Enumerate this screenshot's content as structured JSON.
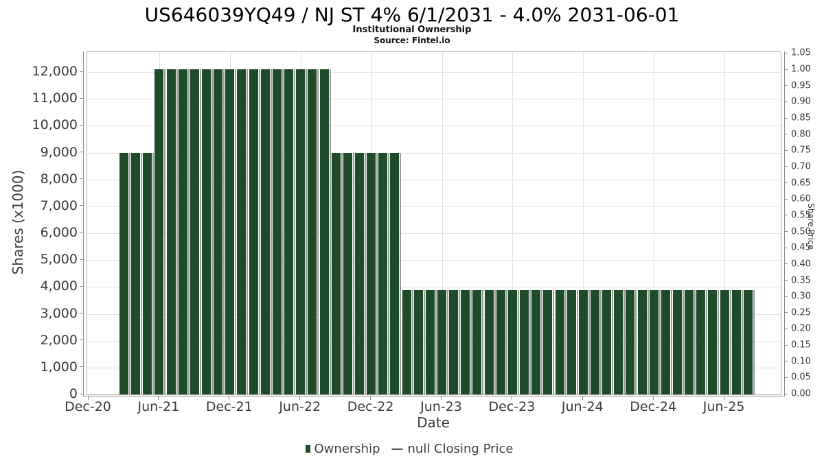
{
  "header": {
    "title": "US646039YQ49 / NJ ST 4% 6/1/2031 - 4.0% 2031-06-01",
    "subtitle": "Institutional Ownership",
    "source": "Source: Fintel.io"
  },
  "axes": {
    "left": {
      "title": "Shares (x1000)"
    },
    "right": {
      "title": "Share Price"
    },
    "x": {
      "title": "Date"
    }
  },
  "legend": {
    "dash_glyph": "—",
    "items": [
      {
        "marker": "square",
        "color": "#1e4b28",
        "label": "Ownership"
      },
      {
        "marker": "dash",
        "color": "#555555",
        "label": "null Closing Price"
      }
    ]
  },
  "chart_data": {
    "type": "bar",
    "title": "US646039YQ49 / NJ ST 4% 6/1/2031 - 4.0% 2031-06-01",
    "subtitle": "Institutional Ownership",
    "source": "Source: Fintel.io",
    "xlabel": "Date",
    "ylabel_left": "Shares (x1000)",
    "ylabel_right": "Share Price",
    "grid": true,
    "legend_position": "bottom",
    "bar_color": "#1e4b28",
    "bar_shadow_color": "#9c9c9c",
    "ylim_left": [
      0,
      12740
    ],
    "ylim_right": [
      0,
      1.055
    ],
    "left_ticks": [
      {
        "value": 0,
        "label": "0"
      },
      {
        "value": 1000,
        "label": "1,000"
      },
      {
        "value": 2000,
        "label": "2,000"
      },
      {
        "value": 3000,
        "label": "3,000"
      },
      {
        "value": 4000,
        "label": "4,000"
      },
      {
        "value": 5000,
        "label": "5,000"
      },
      {
        "value": 6000,
        "label": "6,000"
      },
      {
        "value": 7000,
        "label": "7,000"
      },
      {
        "value": 8000,
        "label": "8,000"
      },
      {
        "value": 9000,
        "label": "9,000"
      },
      {
        "value": 10000,
        "label": "10,000"
      },
      {
        "value": 11000,
        "label": "11,000"
      },
      {
        "value": 12000,
        "label": "12,000"
      }
    ],
    "right_ticks": [
      "0.00",
      "0.05",
      "0.10",
      "0.15",
      "0.20",
      "0.25",
      "0.30",
      "0.35",
      "0.40",
      "0.45",
      "0.50",
      "0.55",
      "0.60",
      "0.65",
      "0.70",
      "0.75",
      "0.80",
      "0.85",
      "0.90",
      "0.95",
      "1.00",
      "1.05"
    ],
    "x_ticks": [
      {
        "label": "Dec-20",
        "month_index": 0
      },
      {
        "label": "Jun-21",
        "month_index": 6
      },
      {
        "label": "Dec-21",
        "month_index": 12
      },
      {
        "label": "Jun-22",
        "month_index": 18
      },
      {
        "label": "Dec-22",
        "month_index": 24
      },
      {
        "label": "Jun-23",
        "month_index": 30
      },
      {
        "label": "Dec-23",
        "month_index": 36
      },
      {
        "label": "Jun-24",
        "month_index": 42
      },
      {
        "label": "Dec-24",
        "month_index": 48
      },
      {
        "label": "Jun-25",
        "month_index": 54
      }
    ],
    "series": [
      {
        "name": "Ownership",
        "unit": "shares x1000",
        "points": [
          [
            "Mar-21",
            9000
          ],
          [
            "Apr-21",
            9000
          ],
          [
            "May-21",
            9000
          ],
          [
            "Jun-21",
            12100
          ],
          [
            "Jul-21",
            12100
          ],
          [
            "Aug-21",
            12100
          ],
          [
            "Sep-21",
            12100
          ],
          [
            "Oct-21",
            12100
          ],
          [
            "Nov-21",
            12100
          ],
          [
            "Dec-21",
            12100
          ],
          [
            "Jan-22",
            12100
          ],
          [
            "Feb-22",
            12100
          ],
          [
            "Mar-22",
            12100
          ],
          [
            "Apr-22",
            12100
          ],
          [
            "May-22",
            12100
          ],
          [
            "Jun-22",
            12100
          ],
          [
            "Jul-22",
            12100
          ],
          [
            "Aug-22",
            12100
          ],
          [
            "Sep-22",
            9000
          ],
          [
            "Oct-22",
            9000
          ],
          [
            "Nov-22",
            9000
          ],
          [
            "Dec-22",
            9000
          ],
          [
            "Jan-23",
            9000
          ],
          [
            "Feb-23",
            9000
          ],
          [
            "Mar-23",
            3880
          ],
          [
            "Apr-23",
            3880
          ],
          [
            "May-23",
            3880
          ],
          [
            "Jun-23",
            3880
          ],
          [
            "Jul-23",
            3880
          ],
          [
            "Aug-23",
            3880
          ],
          [
            "Sep-23",
            3880
          ],
          [
            "Oct-23",
            3880
          ],
          [
            "Nov-23",
            3880
          ],
          [
            "Dec-23",
            3880
          ],
          [
            "Jan-24",
            3880
          ],
          [
            "Feb-24",
            3880
          ],
          [
            "Mar-24",
            3880
          ],
          [
            "Apr-24",
            3880
          ],
          [
            "May-24",
            3880
          ],
          [
            "Jun-24",
            3880
          ],
          [
            "Jul-24",
            3880
          ],
          [
            "Aug-24",
            3880
          ],
          [
            "Sep-24",
            3880
          ],
          [
            "Oct-24",
            3880
          ],
          [
            "Nov-24",
            3880
          ],
          [
            "Dec-24",
            3880
          ],
          [
            "Jan-25",
            3880
          ],
          [
            "Feb-25",
            3880
          ],
          [
            "Mar-25",
            3880
          ],
          [
            "Apr-25",
            3880
          ],
          [
            "May-25",
            3880
          ],
          [
            "Jun-25",
            3880
          ],
          [
            "Jul-25",
            3880
          ],
          [
            "Aug-25",
            3880
          ]
        ]
      },
      {
        "name": "null Closing Price",
        "unit": "share price",
        "points": []
      }
    ]
  }
}
